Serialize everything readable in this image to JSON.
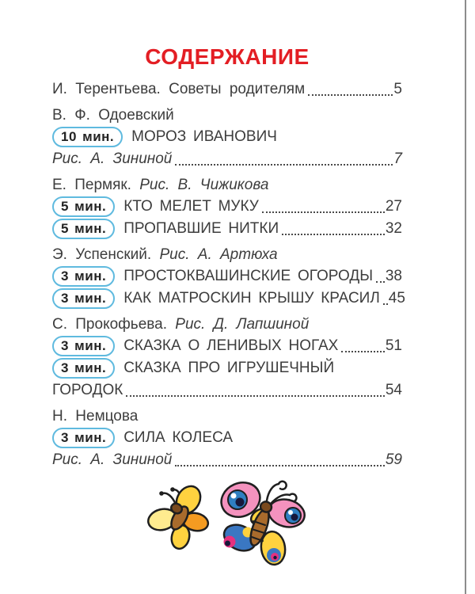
{
  "page": {
    "colors": {
      "title_red": "#e31e24",
      "text": "#3d3d3d",
      "badge_border": "#5fbadf",
      "dots": "#4a4a4a",
      "page_edge": "#8c8c8c"
    }
  },
  "toc": {
    "title": "СОДЕРЖАНИЕ",
    "groups": [
      {
        "lines": [
          {
            "segments": [
              {
                "text": "И. Терентьева. Советы родителям"
              }
            ],
            "leader": true,
            "page": "5"
          }
        ]
      },
      {
        "lines": [
          {
            "segments": [
              {
                "text": "В. Ф. Одоевский"
              }
            ]
          },
          {
            "badge": "10 мин.",
            "segments": [
              {
                "text": "МОРОЗ ИВАНОВИЧ",
                "caps": true
              }
            ]
          },
          {
            "segments": [
              {
                "text": "Рис. А. Зининой",
                "italic": true
              }
            ],
            "leader": true,
            "page": "7"
          }
        ]
      },
      {
        "lines": [
          {
            "segments": [
              {
                "text": "Е. Пермяк."
              },
              {
                "text": "Рис. В. Чижикова",
                "italic": true
              }
            ]
          },
          {
            "badge": "5 мин.",
            "segments": [
              {
                "text": "КТО МЕЛЕТ МУКУ",
                "caps": true
              }
            ],
            "leader": true,
            "page": "27"
          },
          {
            "badge": "5 мин.",
            "segments": [
              {
                "text": "ПРОПАВШИЕ НИТКИ",
                "caps": true
              }
            ],
            "leader": true,
            "page": "32"
          }
        ]
      },
      {
        "lines": [
          {
            "segments": [
              {
                "text": "Э. Успенский."
              },
              {
                "text": "Рис. А. Артюха",
                "italic": true
              }
            ]
          },
          {
            "badge": "3 мин.",
            "segments": [
              {
                "text": "ПРОСТОКВАШИНСКИЕ ОГОРОДЫ",
                "caps": true
              }
            ],
            "leader": true,
            "page": "38"
          },
          {
            "badge": "3 мин.",
            "segments": [
              {
                "text": "КАК МАТРОСКИН КРЫШУ КРАСИЛ",
                "caps": true
              }
            ],
            "leader": true,
            "page": "45"
          }
        ]
      },
      {
        "lines": [
          {
            "segments": [
              {
                "text": "С. Прокофьева."
              },
              {
                "text": "Рис. Д. Лапшиной",
                "italic": true
              }
            ]
          },
          {
            "badge": "3 мин.",
            "segments": [
              {
                "text": "СКАЗКА О ЛЕНИВЫХ НОГАХ",
                "caps": true
              }
            ],
            "leader": true,
            "page": "51"
          },
          {
            "badge": "3 мин.",
            "segments": [
              {
                "text": "СКАЗКА ПРО ИГРУШЕЧНЫЙ",
                "caps": true
              }
            ]
          },
          {
            "segments": [
              {
                "text": "ГОРОДОК",
                "caps": true
              }
            ],
            "leader": true,
            "page": "54"
          }
        ]
      },
      {
        "lines": [
          {
            "segments": [
              {
                "text": "Н. Немцова"
              }
            ]
          },
          {
            "badge": "3 мин.",
            "segments": [
              {
                "text": "СИЛА КОЛЕСА",
                "caps": true
              }
            ]
          },
          {
            "segments": [
              {
                "text": "Рис. А. Зининой",
                "italic": true
              }
            ],
            "leader": true,
            "page": "59"
          }
        ]
      }
    ]
  },
  "illustration": {
    "description": "two cartoon butterflies",
    "colors": {
      "yellow": "#ffd23f",
      "pale_yellow": "#ffeb8f",
      "orange": "#f49b21",
      "pink": "#f492be",
      "blue": "#2f7fc1",
      "deep_blue": "#3a77c2",
      "magenta": "#e5317f",
      "brown": "#a96b2c",
      "dark_brown": "#7a4a1e",
      "outline": "#1f1f1f"
    }
  }
}
